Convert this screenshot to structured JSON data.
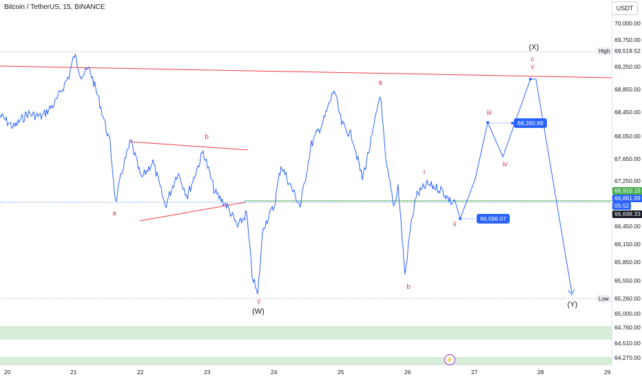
{
  "header": {
    "symbol_title": "Bitcoin / TetherUS, 15, BINANCE",
    "currency": "USDT"
  },
  "price_axis": {
    "ticks": [
      "70,000.00",
      "69,750.00",
      "69,250.00",
      "68,850.00",
      "68,450.00",
      "68,050.00",
      "67,650.00",
      "67,250.00",
      "66,450.00",
      "66,150.00",
      "65,850.00",
      "65,550.00",
      "65,000.00",
      "64,760.00",
      "64,510.00",
      "64,270.00"
    ],
    "high_label": "High",
    "high_value": "69,519.52",
    "low_label": "Low",
    "low_value": "65,260.00",
    "tag_green": "66,910.15",
    "tag_last": "66,881.99",
    "tag_countdown": "05:52",
    "tag_dark": "66,698.33",
    "colors": {
      "green": "#4caf50",
      "blue": "#2962ff",
      "dark": "#131722"
    }
  },
  "time_axis": {
    "ticks": [
      "20",
      "21",
      "22",
      "23",
      "24",
      "25",
      "26",
      "27",
      "28",
      "29"
    ]
  },
  "callouts": {
    "upper": "68,260.89",
    "lower": "66,596.07"
  },
  "wave_labels": {
    "a_left": "a",
    "b_left": "b",
    "c_left": "c",
    "W": "(W)",
    "a_mid": "a",
    "b_mid": "b",
    "i": "i",
    "ii": "ii",
    "iii": "iii",
    "iv": "iv",
    "v": "v",
    "c_top": "c",
    "X": "(X)",
    "Y": "(Y)"
  },
  "flash_icon": "lightning-icon"
}
